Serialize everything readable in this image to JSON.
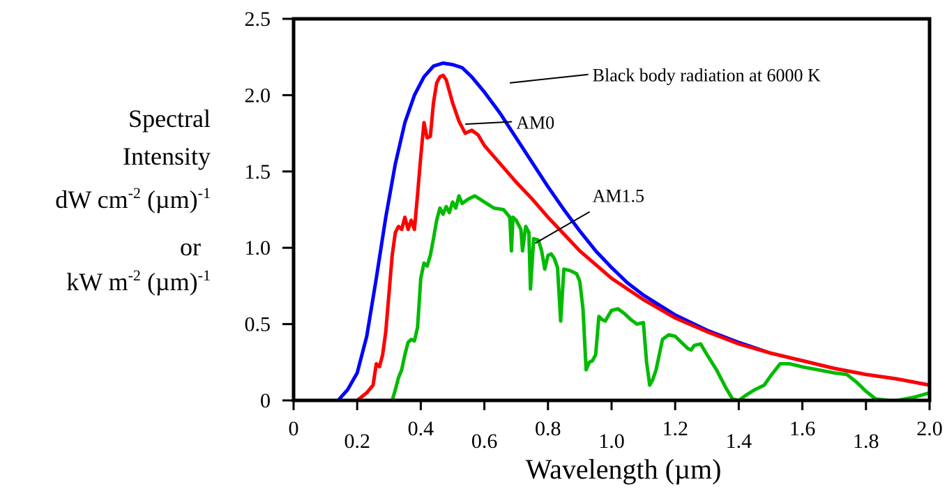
{
  "chart_data": {
    "type": "line",
    "xlabel": "Wavelength (µm)",
    "ylabel_lines": [
      "Spectral",
      "Intensity",
      "dW cm",
      "or",
      "kW m"
    ],
    "ylabel_units": {
      "line3_sup": "-2",
      "line3_tail": " (µm)",
      "line3_sup2": "-1",
      "line5_sup": "-2",
      "line5_tail": " (µm)",
      "line5_sup2": "-1"
    },
    "xlim": [
      0,
      2.0
    ],
    "ylim": [
      0,
      2.5
    ],
    "xticks": [
      0,
      0.2,
      0.4,
      0.6,
      0.8,
      1.0,
      1.2,
      1.4,
      1.6,
      1.8,
      2.0
    ],
    "xtick_labels": [
      "0",
      "0.2",
      "0.4",
      "0.6",
      "0.8",
      "1.0",
      "1.2",
      "1.4",
      "1.6",
      "1.8",
      "2.0"
    ],
    "yticks": [
      0,
      0.5,
      1.0,
      1.5,
      2.0,
      2.5
    ],
    "ytick_labels": [
      "0",
      "0.5",
      "1.0",
      "1.5",
      "2.0",
      "2.5"
    ],
    "grid": false,
    "series": [
      {
        "name": "Black body radiation at 6000 K",
        "color": "#0000ff",
        "points": [
          [
            0.14,
            0
          ],
          [
            0.17,
            0.07
          ],
          [
            0.2,
            0.18
          ],
          [
            0.23,
            0.42
          ],
          [
            0.26,
            0.8
          ],
          [
            0.29,
            1.2
          ],
          [
            0.32,
            1.55
          ],
          [
            0.35,
            1.82
          ],
          [
            0.38,
            2.0
          ],
          [
            0.41,
            2.12
          ],
          [
            0.44,
            2.19
          ],
          [
            0.47,
            2.21
          ],
          [
            0.5,
            2.2
          ],
          [
            0.53,
            2.18
          ],
          [
            0.56,
            2.12
          ],
          [
            0.6,
            2.02
          ],
          [
            0.65,
            1.88
          ],
          [
            0.7,
            1.72
          ],
          [
            0.75,
            1.56
          ],
          [
            0.8,
            1.4
          ],
          [
            0.85,
            1.25
          ],
          [
            0.9,
            1.11
          ],
          [
            0.95,
            0.98
          ],
          [
            1.0,
            0.87
          ],
          [
            1.05,
            0.77
          ],
          [
            1.1,
            0.69
          ],
          [
            1.2,
            0.56
          ],
          [
            1.3,
            0.46
          ],
          [
            1.4,
            0.38
          ],
          [
            1.5,
            0.31
          ],
          [
            1.6,
            0.26
          ],
          [
            1.7,
            0.21
          ],
          [
            1.8,
            0.17
          ],
          [
            1.9,
            0.14
          ],
          [
            2.0,
            0.1
          ]
        ]
      },
      {
        "name": "AM0",
        "color": "#ff0000",
        "points": [
          [
            0.2,
            0
          ],
          [
            0.23,
            0.05
          ],
          [
            0.25,
            0.1
          ],
          [
            0.26,
            0.24
          ],
          [
            0.27,
            0.22
          ],
          [
            0.28,
            0.3
          ],
          [
            0.29,
            0.45
          ],
          [
            0.3,
            0.7
          ],
          [
            0.31,
            0.95
          ],
          [
            0.32,
            1.1
          ],
          [
            0.33,
            1.14
          ],
          [
            0.34,
            1.12
          ],
          [
            0.35,
            1.2
          ],
          [
            0.36,
            1.12
          ],
          [
            0.37,
            1.18
          ],
          [
            0.38,
            1.12
          ],
          [
            0.39,
            1.35
          ],
          [
            0.4,
            1.6
          ],
          [
            0.41,
            1.82
          ],
          [
            0.42,
            1.72
          ],
          [
            0.43,
            1.73
          ],
          [
            0.44,
            1.95
          ],
          [
            0.45,
            2.08
          ],
          [
            0.46,
            2.12
          ],
          [
            0.47,
            2.13
          ],
          [
            0.48,
            2.1
          ],
          [
            0.5,
            1.95
          ],
          [
            0.52,
            1.83
          ],
          [
            0.54,
            1.75
          ],
          [
            0.56,
            1.77
          ],
          [
            0.58,
            1.74
          ],
          [
            0.6,
            1.67
          ],
          [
            0.65,
            1.55
          ],
          [
            0.7,
            1.43
          ],
          [
            0.75,
            1.32
          ],
          [
            0.8,
            1.2
          ],
          [
            0.85,
            1.09
          ],
          [
            0.9,
            0.98
          ],
          [
            0.95,
            0.89
          ],
          [
            1.0,
            0.8
          ],
          [
            1.1,
            0.66
          ],
          [
            1.2,
            0.54
          ],
          [
            1.3,
            0.45
          ],
          [
            1.4,
            0.37
          ],
          [
            1.5,
            0.31
          ],
          [
            1.6,
            0.26
          ],
          [
            1.7,
            0.21
          ],
          [
            1.8,
            0.17
          ],
          [
            1.9,
            0.14
          ],
          [
            2.0,
            0.1
          ]
        ]
      },
      {
        "name": "AM1.5",
        "color": "#00bb00",
        "points": [
          [
            0.31,
            0
          ],
          [
            0.32,
            0.07
          ],
          [
            0.33,
            0.15
          ],
          [
            0.34,
            0.2
          ],
          [
            0.35,
            0.3
          ],
          [
            0.36,
            0.38
          ],
          [
            0.37,
            0.4
          ],
          [
            0.38,
            0.39
          ],
          [
            0.39,
            0.48
          ],
          [
            0.4,
            0.8
          ],
          [
            0.41,
            0.9
          ],
          [
            0.42,
            0.88
          ],
          [
            0.43,
            0.95
          ],
          [
            0.44,
            1.06
          ],
          [
            0.45,
            1.18
          ],
          [
            0.46,
            1.26
          ],
          [
            0.47,
            1.22
          ],
          [
            0.48,
            1.27
          ],
          [
            0.49,
            1.23
          ],
          [
            0.5,
            1.3
          ],
          [
            0.51,
            1.26
          ],
          [
            0.52,
            1.34
          ],
          [
            0.53,
            1.29
          ],
          [
            0.55,
            1.32
          ],
          [
            0.57,
            1.34
          ],
          [
            0.6,
            1.3
          ],
          [
            0.63,
            1.26
          ],
          [
            0.66,
            1.25
          ],
          [
            0.68,
            1.2
          ],
          [
            0.685,
            0.98
          ],
          [
            0.69,
            1.2
          ],
          [
            0.7,
            1.18
          ],
          [
            0.715,
            1.12
          ],
          [
            0.72,
            0.98
          ],
          [
            0.73,
            1.14
          ],
          [
            0.74,
            1.1
          ],
          [
            0.745,
            0.73
          ],
          [
            0.755,
            1.06
          ],
          [
            0.77,
            1.05
          ],
          [
            0.78,
            0.98
          ],
          [
            0.79,
            0.86
          ],
          [
            0.8,
            0.95
          ],
          [
            0.81,
            0.96
          ],
          [
            0.82,
            0.93
          ],
          [
            0.83,
            0.87
          ],
          [
            0.84,
            0.52
          ],
          [
            0.85,
            0.86
          ],
          [
            0.87,
            0.85
          ],
          [
            0.89,
            0.83
          ],
          [
            0.9,
            0.78
          ],
          [
            0.91,
            0.6
          ],
          [
            0.92,
            0.2
          ],
          [
            0.93,
            0.25
          ],
          [
            0.94,
            0.26
          ],
          [
            0.95,
            0.3
          ],
          [
            0.96,
            0.55
          ],
          [
            0.97,
            0.53
          ],
          [
            0.98,
            0.52
          ],
          [
            1.0,
            0.59
          ],
          [
            1.02,
            0.6
          ],
          [
            1.04,
            0.57
          ],
          [
            1.06,
            0.53
          ],
          [
            1.08,
            0.5
          ],
          [
            1.1,
            0.51
          ],
          [
            1.11,
            0.25
          ],
          [
            1.12,
            0.1
          ],
          [
            1.13,
            0.14
          ],
          [
            1.14,
            0.2
          ],
          [
            1.15,
            0.3
          ],
          [
            1.16,
            0.4
          ],
          [
            1.18,
            0.43
          ],
          [
            1.2,
            0.42
          ],
          [
            1.22,
            0.38
          ],
          [
            1.24,
            0.34
          ],
          [
            1.25,
            0.33
          ],
          [
            1.26,
            0.36
          ],
          [
            1.28,
            0.37
          ],
          [
            1.3,
            0.3
          ],
          [
            1.33,
            0.2
          ],
          [
            1.36,
            0.08
          ],
          [
            1.38,
            0.01
          ],
          [
            1.4,
            0
          ],
          [
            1.42,
            0.03
          ],
          [
            1.45,
            0.07
          ],
          [
            1.48,
            0.1
          ],
          [
            1.5,
            0.16
          ],
          [
            1.53,
            0.24
          ],
          [
            1.56,
            0.24
          ],
          [
            1.6,
            0.22
          ],
          [
            1.65,
            0.2
          ],
          [
            1.7,
            0.18
          ],
          [
            1.74,
            0.17
          ],
          [
            1.77,
            0.12
          ],
          [
            1.8,
            0.06
          ],
          [
            1.83,
            0.01
          ],
          [
            1.87,
            0
          ],
          [
            1.9,
            0
          ],
          [
            1.95,
            0.02
          ],
          [
            2.0,
            0.05
          ]
        ]
      }
    ],
    "annotations": [
      {
        "text": "Black body radiation at 6000 K",
        "x": 0.68,
        "y": 2.08,
        "label_x": 0.94,
        "label_y": 2.09
      },
      {
        "text": "AM0",
        "x": 0.54,
        "y": 1.81,
        "label_x": 0.7,
        "label_y": 1.78
      },
      {
        "text": "AM1.5",
        "x": 0.76,
        "y": 1.03,
        "label_x": 0.94,
        "label_y": 1.3
      }
    ]
  }
}
